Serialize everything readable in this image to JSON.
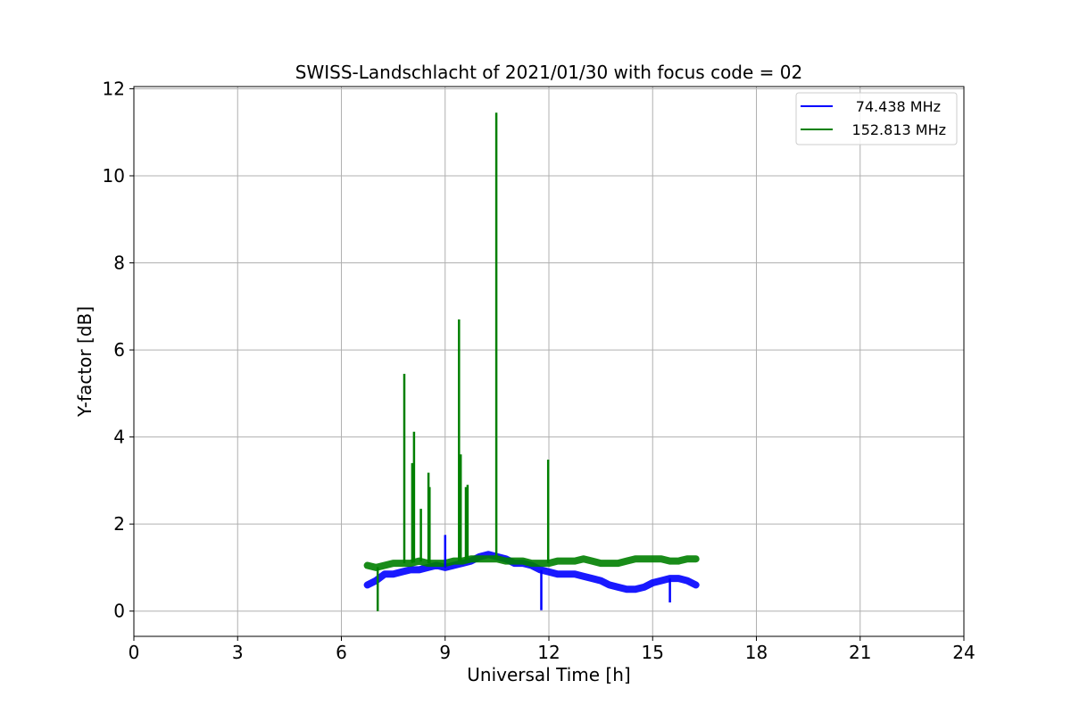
{
  "chart_data": {
    "type": "line",
    "title": "SWISS-Landschlacht of 2021/01/30 with focus code = 02",
    "xlabel": "Universal Time [h]",
    "ylabel": "Y-factor [dB]",
    "xlim": [
      0,
      24
    ],
    "ylim": [
      -0.58,
      12.05
    ],
    "xticks": [
      0,
      3,
      6,
      9,
      12,
      15,
      18,
      21,
      24
    ],
    "yticks": [
      0,
      2,
      4,
      6,
      8,
      10,
      12
    ],
    "grid": true,
    "legend_position": "top-right",
    "series": [
      {
        "name": "74.438 MHz",
        "color": "#0000ff",
        "x": [
          6.75,
          7.0,
          7.25,
          7.5,
          7.75,
          8.0,
          8.25,
          8.5,
          8.75,
          9.0,
          9.25,
          9.5,
          9.75,
          10.0,
          10.25,
          10.5,
          10.75,
          11.0,
          11.25,
          11.5,
          11.75,
          12.0,
          12.25,
          12.5,
          12.75,
          13.0,
          13.25,
          13.5,
          13.75,
          14.0,
          14.25,
          14.5,
          14.75,
          15.0,
          15.25,
          15.5,
          15.75,
          16.0,
          16.25
        ],
        "values": [
          0.6,
          0.7,
          0.85,
          0.85,
          0.9,
          0.95,
          0.95,
          1.0,
          1.05,
          1.0,
          1.05,
          1.1,
          1.15,
          1.25,
          1.3,
          1.25,
          1.2,
          1.1,
          1.1,
          1.05,
          0.95,
          0.9,
          0.85,
          0.85,
          0.85,
          0.8,
          0.75,
          0.7,
          0.6,
          0.55,
          0.5,
          0.5,
          0.55,
          0.65,
          0.7,
          0.75,
          0.75,
          0.7,
          0.6
        ]
      },
      {
        "name": "152.813 MHz",
        "color": "#008000",
        "x": [
          6.75,
          7.0,
          7.25,
          7.5,
          7.75,
          8.0,
          8.25,
          8.5,
          8.75,
          9.0,
          9.25,
          9.5,
          9.75,
          10.0,
          10.25,
          10.5,
          10.75,
          11.0,
          11.25,
          11.5,
          11.75,
          12.0,
          12.25,
          12.5,
          12.75,
          13.0,
          13.25,
          13.5,
          13.75,
          14.0,
          14.25,
          14.5,
          14.75,
          15.0,
          15.25,
          15.5,
          15.75,
          16.0,
          16.25
        ],
        "values": [
          1.05,
          1.0,
          1.05,
          1.1,
          1.1,
          1.1,
          1.15,
          1.1,
          1.1,
          1.1,
          1.15,
          1.15,
          1.2,
          1.2,
          1.2,
          1.2,
          1.15,
          1.15,
          1.15,
          1.1,
          1.1,
          1.1,
          1.15,
          1.15,
          1.15,
          1.2,
          1.15,
          1.1,
          1.1,
          1.1,
          1.15,
          1.2,
          1.2,
          1.2,
          1.2,
          1.15,
          1.15,
          1.2,
          1.2
        ]
      }
    ],
    "spikes": [
      {
        "series": 1,
        "x": 7.05,
        "y": 0.0
      },
      {
        "series": 1,
        "x": 7.82,
        "y": 5.45
      },
      {
        "series": 1,
        "x": 8.05,
        "y": 3.4
      },
      {
        "series": 1,
        "x": 8.1,
        "y": 4.12
      },
      {
        "series": 1,
        "x": 8.3,
        "y": 2.35
      },
      {
        "series": 1,
        "x": 8.52,
        "y": 3.18
      },
      {
        "series": 1,
        "x": 8.55,
        "y": 2.85
      },
      {
        "series": 1,
        "x": 9.4,
        "y": 6.7
      },
      {
        "series": 1,
        "x": 9.45,
        "y": 3.6
      },
      {
        "series": 1,
        "x": 9.6,
        "y": 2.85
      },
      {
        "series": 1,
        "x": 9.65,
        "y": 2.9
      },
      {
        "series": 1,
        "x": 10.48,
        "y": 11.45
      },
      {
        "series": 1,
        "x": 11.98,
        "y": 3.48
      },
      {
        "series": 0,
        "x": 9.0,
        "y": 1.75
      },
      {
        "series": 0,
        "x": 11.78,
        "y": 0.02
      },
      {
        "series": 0,
        "x": 15.5,
        "y": 0.2
      }
    ]
  }
}
